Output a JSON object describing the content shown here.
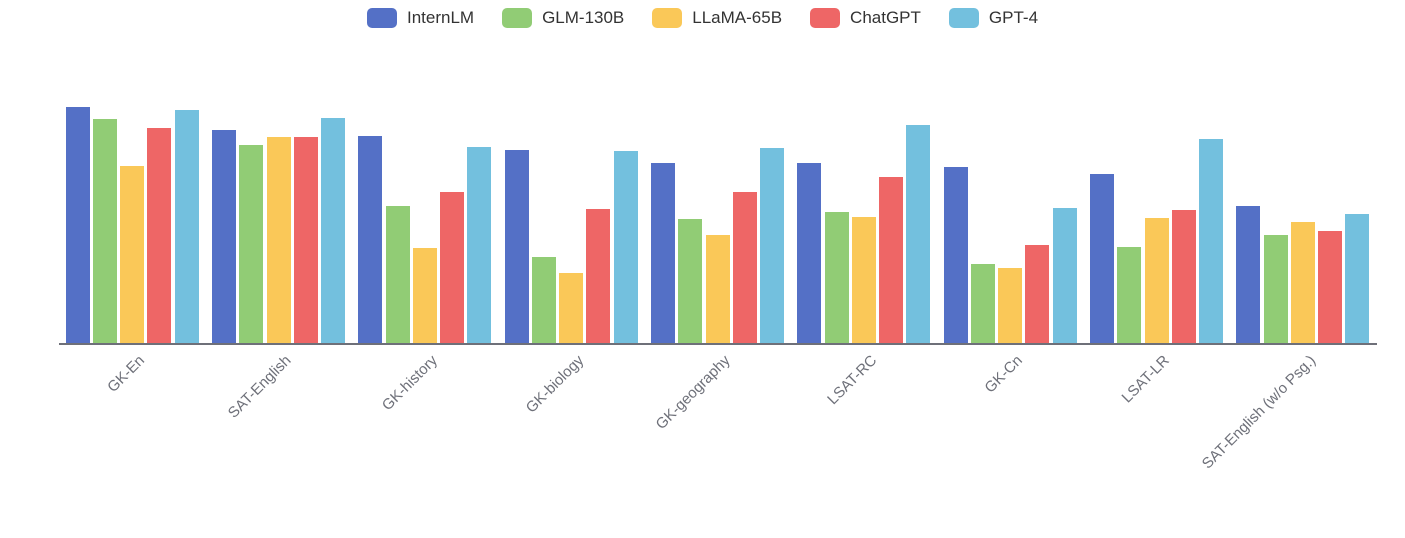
{
  "chart_data": {
    "type": "bar",
    "title": "",
    "xlabel": "",
    "ylabel": "",
    "ylim": [
      0,
      100
    ],
    "y_axis_visible": false,
    "grid": false,
    "legend_position": "top-center",
    "categories": [
      "GK-En",
      "SAT-English",
      "GK-history",
      "GK-biology",
      "GK-geography",
      "LSAT-RC",
      "GK-Cn",
      "LSAT-LR",
      "SAT-English (w/o Psg.)"
    ],
    "series": [
      {
        "name": "InternLM",
        "color": "#5470c6",
        "values": [
          83.4,
          75.3,
          73.1,
          68.2,
          63.7,
          63.7,
          62.1,
          59.7,
          48.3
        ]
      },
      {
        "name": "GLM-130B",
        "color": "#91cc75",
        "values": [
          79.2,
          69.9,
          48.4,
          30.3,
          43.7,
          46.2,
          27.8,
          33.8,
          38.2
        ]
      },
      {
        "name": "LLaMA-65B",
        "color": "#fac858",
        "values": [
          62.5,
          72.9,
          33.5,
          24.8,
          38.2,
          44.6,
          26.4,
          44.2,
          42.7
        ]
      },
      {
        "name": "ChatGPT",
        "color": "#ee6666",
        "values": [
          76.0,
          72.7,
          53.4,
          47.3,
          53.5,
          58.6,
          34.6,
          47.0,
          39.6
        ]
      },
      {
        "name": "GPT-4",
        "color": "#73c0de",
        "values": [
          82.4,
          79.4,
          69.3,
          67.8,
          69.0,
          77.0,
          47.6,
          72.0,
          45.5
        ]
      }
    ]
  },
  "colors": {
    "background": "#ffffff",
    "axis_line": "#6E7079",
    "axis_label_text": "#6E7079",
    "legend_text": "#333333"
  }
}
